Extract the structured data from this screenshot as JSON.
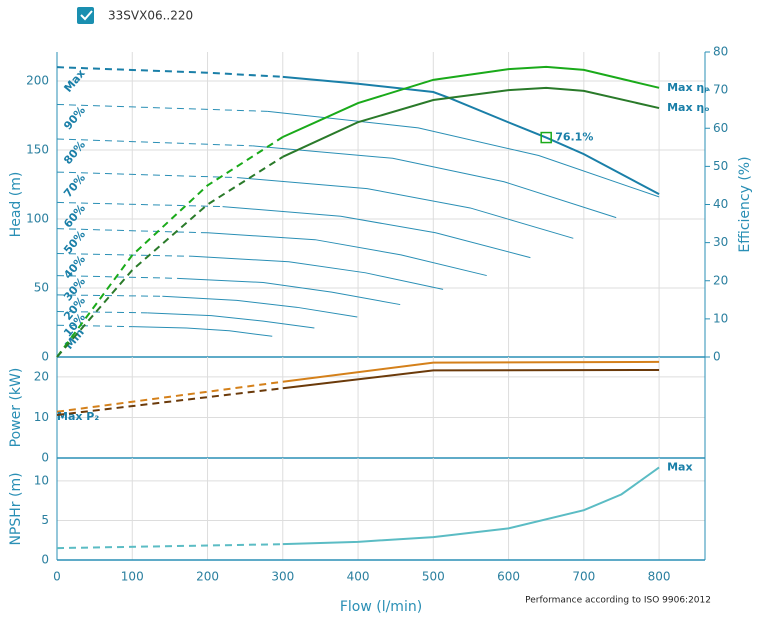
{
  "header": {
    "checkbox_label": "33SVX06..220"
  },
  "footer": "Performance according to ISO 9906:2012",
  "chart_data": [
    {
      "type": "line",
      "ylabel": "Head (m)",
      "y2label": "Efficiency (%)",
      "ylim": [
        0,
        221
      ],
      "yticks": [
        0,
        50,
        100,
        150,
        200
      ],
      "y2lim": [
        0,
        80
      ],
      "y2ticks": [
        0,
        10,
        20,
        30,
        40,
        50,
        60,
        70,
        80
      ],
      "grid": true,
      "series": [
        {
          "name": "Max",
          "color": "#1a7fa8",
          "dash_end": 300,
          "x": [
            0,
            100,
            200,
            300,
            400,
            500,
            520,
            600,
            650,
            700,
            800
          ],
          "values": [
            210,
            208,
            206,
            203,
            198,
            192,
            188,
            170,
            159,
            147,
            118
          ]
        },
        {
          "name": "90%",
          "color": "#2a8fb5",
          "dash_end": 280,
          "x": [
            0,
            280,
            480,
            640,
            800
          ],
          "values": [
            183,
            178,
            166,
            146,
            116
          ]
        },
        {
          "name": "80%",
          "color": "#2a8fb5",
          "dash_end": 260,
          "x": [
            0,
            260,
            446,
            594,
            743
          ],
          "values": [
            158,
            153,
            144,
            127,
            101
          ]
        },
        {
          "name": "70%",
          "color": "#2a8fb5",
          "dash_end": 240,
          "x": [
            0,
            240,
            412,
            549,
            686
          ],
          "values": [
            134,
            130,
            122,
            108,
            86
          ]
        },
        {
          "name": "60%",
          "color": "#2a8fb5",
          "dash_end": 220,
          "x": [
            0,
            220,
            377,
            503,
            629
          ],
          "values": [
            112,
            109,
            102,
            90,
            72
          ]
        },
        {
          "name": "50%",
          "color": "#2a8fb5",
          "dash_end": 200,
          "x": [
            0,
            200,
            343,
            457,
            571
          ],
          "values": [
            93,
            90,
            85,
            74,
            59
          ]
        },
        {
          "name": "40%",
          "color": "#2a8fb5",
          "dash_end": 180,
          "x": [
            0,
            180,
            308,
            410,
            513
          ],
          "values": [
            75,
            73,
            69,
            61,
            49
          ]
        },
        {
          "name": "30%",
          "color": "#2a8fb5",
          "dash_end": 160,
          "x": [
            0,
            160,
            274,
            365,
            456
          ],
          "values": [
            59,
            57,
            54,
            47,
            38
          ]
        },
        {
          "name": "20%",
          "color": "#2a8fb5",
          "dash_end": 140,
          "x": [
            0,
            140,
            239,
            319,
            399
          ],
          "values": [
            45,
            44,
            41,
            36,
            29
          ]
        },
        {
          "name": "10%",
          "color": "#2a8fb5",
          "dash_end": 120,
          "x": [
            0,
            120,
            205,
            274,
            342
          ],
          "values": [
            33,
            32,
            30,
            26,
            21
          ]
        },
        {
          "name": "Min",
          "color": "#2a8fb5",
          "dash_end": 100,
          "x": [
            0,
            100,
            172,
            229,
            286
          ],
          "values": [
            23,
            22,
            21,
            19,
            15
          ]
        },
        {
          "name": "Max ηₚ",
          "color": "#1aaa1a",
          "axis": "y2",
          "dash_end": 300,
          "x": [
            0,
            100,
            200,
            300,
            400,
            500,
            600,
            650,
            700,
            800
          ],
          "values": [
            0,
            26.7,
            45,
            57.7,
            66.6,
            72.7,
            75.5,
            76.1,
            75.3,
            70.6
          ]
        },
        {
          "name": "Max ηₒ",
          "color": "#2a7a2a",
          "axis": "y2",
          "dash_end": 300,
          "x": [
            0,
            100,
            200,
            300,
            400,
            500,
            600,
            650,
            700,
            800
          ],
          "values": [
            0,
            22.8,
            40,
            52.5,
            61.6,
            67.4,
            70,
            70.6,
            69.8,
            65.3
          ]
        }
      ],
      "annotations": [
        {
          "x": 650,
          "y": 159,
          "text": "76.1%"
        }
      ]
    },
    {
      "type": "line",
      "ylabel": "Power (kW)",
      "ylim": [
        0,
        24.9
      ],
      "yticks": [
        0,
        10,
        20
      ],
      "grid": true,
      "series": [
        {
          "name": "Max P₂",
          "color": "#d4801a",
          "dash_end": 300,
          "x": [
            0,
            300,
            500,
            800
          ],
          "values": [
            11.4,
            18.8,
            23.5,
            23.7
          ]
        },
        {
          "color": "#6b3a0a",
          "dash_end": 300,
          "x": [
            0,
            300,
            500,
            800
          ],
          "values": [
            10.6,
            17.2,
            21.6,
            21.7
          ]
        }
      ]
    },
    {
      "type": "line",
      "ylabel": "NPSHr (m)",
      "xlabel": "Flow (l/min)",
      "ylim": [
        0,
        12.9
      ],
      "yticks": [
        0,
        5,
        10
      ],
      "xlim": [
        0,
        861
      ],
      "xticks": [
        0,
        100,
        200,
        300,
        400,
        500,
        600,
        700,
        800
      ],
      "grid": true,
      "series": [
        {
          "name": "Max",
          "color": "#5bbcc4",
          "dash_end": 300,
          "x": [
            0,
            300,
            400,
            500,
            600,
            700,
            750,
            800
          ],
          "values": [
            1.5,
            2,
            2.3,
            2.9,
            4.0,
            6.3,
            8.3,
            11.7
          ]
        }
      ]
    }
  ]
}
